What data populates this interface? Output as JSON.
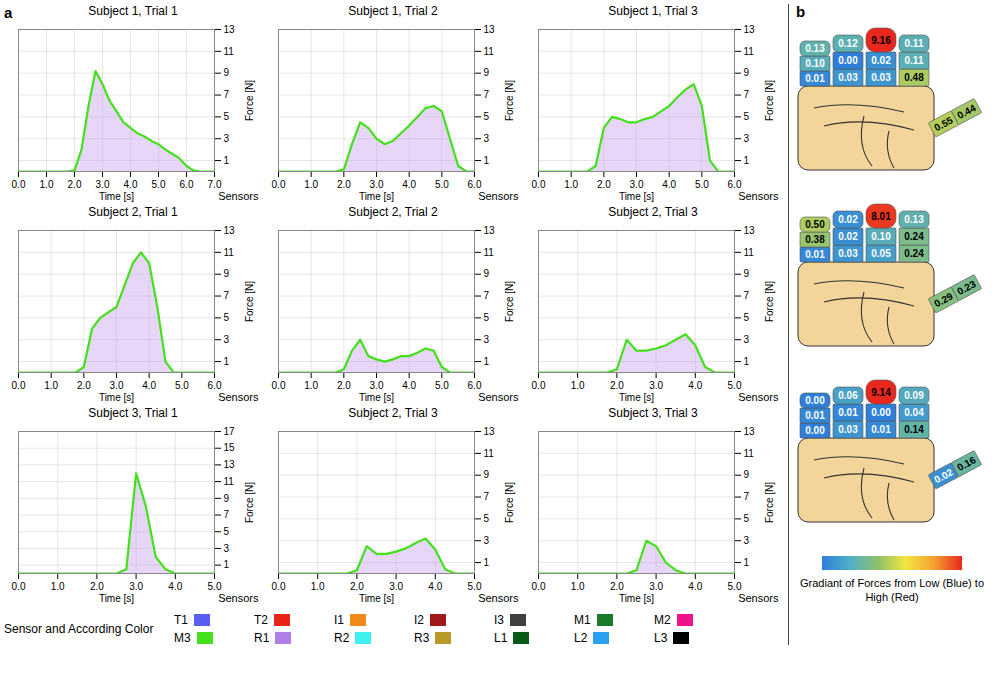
{
  "chart_data": [
    {
      "type": "line",
      "title": "Subject 1, Trial 1",
      "x_label": "Time [s]",
      "y_label": "Force [N]",
      "depth_label": "Sensors",
      "x": [
        0,
        0.25,
        0.5,
        0.75,
        1,
        1.25,
        1.5,
        1.75,
        2,
        2.25,
        2.5,
        2.75,
        3,
        3.25,
        3.5,
        3.75,
        4,
        4.25,
        4.5,
        4.75,
        5,
        5.25,
        5.5,
        5.75,
        6,
        6.25,
        6.5,
        6.75,
        7
      ],
      "series": [
        {
          "name": "M3",
          "color": "#44e01c",
          "values": [
            0,
            0,
            0,
            0,
            0,
            0,
            0,
            0,
            0.1,
            2,
            6,
            9.2,
            8,
            6.5,
            5.5,
            4.5,
            4,
            3.5,
            3.2,
            2.8,
            2.5,
            2,
            1.6,
            1.2,
            0.5,
            0.1,
            0,
            0,
            0
          ]
        }
      ],
      "xlim": [
        0,
        7
      ],
      "xticks": [
        0,
        1,
        2,
        3,
        4,
        5,
        6,
        7
      ],
      "ylim": [
        0,
        13
      ],
      "yticks": [
        1,
        3,
        5,
        7,
        9,
        11,
        13
      ],
      "grid": true
    },
    {
      "type": "line",
      "title": "Subject 1, Trial 2",
      "x_label": "Time [s]",
      "y_label": "Force [N]",
      "depth_label": "Sensors",
      "x": [
        0,
        0.25,
        0.5,
        0.75,
        1,
        1.25,
        1.5,
        1.75,
        2,
        2.25,
        2.5,
        2.75,
        3,
        3.25,
        3.5,
        3.75,
        4,
        4.25,
        4.5,
        4.75,
        5,
        5.25,
        5.5,
        5.75,
        6
      ],
      "series": [
        {
          "name": "M3",
          "color": "#44e01c",
          "values": [
            0,
            0,
            0,
            0,
            0,
            0,
            0,
            0,
            0.2,
            2.5,
            4.5,
            4,
            3,
            2.5,
            2.8,
            3.5,
            4.2,
            5,
            5.8,
            6,
            5.5,
            3,
            0.5,
            0,
            0
          ]
        }
      ],
      "xlim": [
        0,
        6
      ],
      "xticks": [
        0,
        1,
        2,
        3,
        4,
        5,
        6
      ],
      "ylim": [
        0,
        13
      ],
      "yticks": [
        1,
        3,
        5,
        7,
        9,
        11,
        13
      ],
      "grid": true
    },
    {
      "type": "line",
      "title": "Subject 1, Trial 3",
      "x_label": "Time [s]",
      "y_label": "Force [N]",
      "depth_label": "Sensors",
      "x": [
        0,
        0.25,
        0.5,
        0.75,
        1,
        1.25,
        1.5,
        1.75,
        2,
        2.25,
        2.5,
        2.75,
        3,
        3.25,
        3.5,
        3.75,
        4,
        4.25,
        4.5,
        4.75,
        5,
        5.25,
        5.5,
        5.75,
        6
      ],
      "series": [
        {
          "name": "M3",
          "color": "#44e01c",
          "values": [
            0,
            0,
            0,
            0,
            0,
            0,
            0,
            0.5,
            4,
            5,
            4.8,
            4.5,
            4.5,
            4.8,
            5,
            5.5,
            6,
            6.8,
            7.5,
            8,
            6,
            1,
            0,
            0,
            0
          ]
        }
      ],
      "xlim": [
        0,
        6
      ],
      "xticks": [
        0,
        1,
        2,
        3,
        4,
        5,
        6
      ],
      "ylim": [
        0,
        13
      ],
      "yticks": [
        1,
        3,
        5,
        7,
        9,
        11,
        13
      ],
      "grid": true
    },
    {
      "type": "line",
      "title": "Subject 2, Trial 1",
      "x_label": "Time [s]",
      "y_label": "Force [N]",
      "depth_label": "Sensors",
      "x": [
        0,
        0.25,
        0.5,
        0.75,
        1,
        1.25,
        1.5,
        1.75,
        2,
        2.25,
        2.5,
        2.75,
        3,
        3.25,
        3.5,
        3.75,
        4,
        4.25,
        4.5,
        4.75,
        5,
        5.25,
        5.5,
        5.75,
        6
      ],
      "series": [
        {
          "name": "M3",
          "color": "#44e01c",
          "values": [
            0,
            0,
            0,
            0,
            0,
            0,
            0,
            0,
            0.5,
            4,
            5,
            5.5,
            6,
            8,
            10,
            11,
            10,
            6,
            1,
            0,
            0,
            0,
            0,
            0,
            0
          ]
        }
      ],
      "xlim": [
        0,
        6
      ],
      "xticks": [
        0,
        1,
        2,
        3,
        4,
        5,
        6
      ],
      "ylim": [
        0,
        13
      ],
      "yticks": [
        1,
        3,
        5,
        7,
        9,
        11,
        13
      ],
      "grid": true
    },
    {
      "type": "line",
      "title": "Subject 2, Trial 2",
      "x_label": "Time [s]",
      "y_label": "Force [N]",
      "depth_label": "Sensors",
      "x": [
        0,
        0.25,
        0.5,
        0.75,
        1,
        1.25,
        1.5,
        1.75,
        2,
        2.25,
        2.5,
        2.75,
        3,
        3.25,
        3.5,
        3.75,
        4,
        4.25,
        4.5,
        4.75,
        5,
        5.25,
        5.5,
        5.75,
        6
      ],
      "series": [
        {
          "name": "M3",
          "color": "#44e01c",
          "values": [
            0,
            0,
            0,
            0,
            0,
            0,
            0,
            0,
            0.3,
            2,
            3,
            1.5,
            1.2,
            1,
            1.2,
            1.5,
            1.5,
            1.8,
            2.2,
            2,
            0.5,
            0,
            0,
            0,
            0
          ]
        }
      ],
      "xlim": [
        0,
        6
      ],
      "xticks": [
        0,
        1,
        2,
        3,
        4,
        5,
        6
      ],
      "ylim": [
        0,
        13
      ],
      "yticks": [
        1,
        3,
        5,
        7,
        9,
        11,
        13
      ],
      "grid": true
    },
    {
      "type": "line",
      "title": "Subject 2, Trial 3",
      "x_label": "Time [s]",
      "y_label": "Force [N]",
      "depth_label": "Sensors",
      "x": [
        0,
        0.25,
        0.5,
        0.75,
        1,
        1.25,
        1.5,
        1.75,
        2,
        2.25,
        2.5,
        2.75,
        3,
        3.25,
        3.5,
        3.75,
        4,
        4.25,
        4.5,
        4.75,
        5
      ],
      "series": [
        {
          "name": "M3",
          "color": "#44e01c",
          "values": [
            0,
            0,
            0,
            0,
            0,
            0,
            0,
            0,
            0.3,
            3,
            2,
            2,
            2.2,
            2.5,
            3,
            3.5,
            2.5,
            0.5,
            0,
            0,
            0
          ]
        }
      ],
      "xlim": [
        0,
        5
      ],
      "xticks": [
        0,
        1,
        2,
        3,
        4,
        5
      ],
      "ylim": [
        0,
        13
      ],
      "yticks": [
        1,
        3,
        5,
        7,
        9,
        11,
        13
      ],
      "grid": true
    },
    {
      "type": "line",
      "title": "Subject 3, Trial 1",
      "x_label": "Time [s]",
      "y_label": "Force [N]",
      "depth_label": "Sensors",
      "x": [
        0,
        0.25,
        0.5,
        0.75,
        1,
        1.25,
        1.5,
        1.75,
        2,
        2.25,
        2.5,
        2.75,
        3,
        3.25,
        3.5,
        3.75,
        4,
        4.25,
        4.5,
        4.75,
        5
      ],
      "series": [
        {
          "name": "M3",
          "color": "#44e01c",
          "values": [
            0,
            0,
            0,
            0,
            0,
            0,
            0,
            0,
            0,
            0,
            0,
            0.5,
            12,
            8,
            2,
            0.5,
            0,
            0,
            0,
            0,
            0
          ]
        }
      ],
      "xlim": [
        0,
        5
      ],
      "xticks": [
        0,
        1,
        2,
        3,
        4,
        5
      ],
      "ylim": [
        0,
        17
      ],
      "yticks": [
        1,
        3,
        5,
        7,
        9,
        11,
        13,
        15,
        17
      ],
      "grid": true
    },
    {
      "type": "line",
      "title": "Subject 2, Trial 3",
      "x_label": "Time [s]",
      "y_label": "Force [N]",
      "depth_label": "Sensors",
      "x": [
        0,
        0.25,
        0.5,
        0.75,
        1,
        1.25,
        1.5,
        1.75,
        2,
        2.25,
        2.5,
        2.75,
        3,
        3.25,
        3.5,
        3.75,
        4,
        4.25,
        4.5,
        4.75,
        5
      ],
      "series": [
        {
          "name": "M3",
          "color": "#44e01c",
          "values": [
            0,
            0,
            0,
            0,
            0,
            0,
            0,
            0,
            0.3,
            2.5,
            1.8,
            1.8,
            2,
            2.3,
            2.8,
            3.2,
            2.2,
            0.4,
            0,
            0,
            0
          ]
        }
      ],
      "xlim": [
        0,
        5
      ],
      "xticks": [
        0,
        1,
        2,
        3,
        4,
        5
      ],
      "ylim": [
        0,
        13
      ],
      "yticks": [
        1,
        3,
        5,
        7,
        9,
        11,
        13
      ],
      "grid": true
    },
    {
      "type": "line",
      "title": "Subject 3, Trial 3",
      "x_label": "Time [s]",
      "y_label": "Force [N]",
      "depth_label": "Sensors",
      "x": [
        0,
        0.25,
        0.5,
        0.75,
        1,
        1.25,
        1.5,
        1.75,
        2,
        2.25,
        2.5,
        2.75,
        3,
        3.25,
        3.5,
        3.75,
        4,
        4.25,
        4.5,
        4.75,
        5
      ],
      "series": [
        {
          "name": "M3",
          "color": "#44e01c",
          "values": [
            0,
            0,
            0,
            0,
            0,
            0,
            0,
            0,
            0,
            0,
            0.3,
            3,
            2.5,
            1,
            0.3,
            0,
            0,
            0,
            0,
            0,
            0
          ]
        }
      ],
      "xlim": [
        0,
        5
      ],
      "xticks": [
        0,
        1,
        2,
        3,
        4,
        5
      ],
      "ylim": [
        0,
        13
      ],
      "yticks": [
        1,
        3,
        5,
        7,
        9,
        11,
        13
      ],
      "grid": true
    }
  ],
  "panel_labels": [
    "a",
    "b"
  ],
  "sensor_legend": {
    "title": "Sensor and According Color",
    "items": [
      {
        "name": "T1",
        "color": "#5a5ef0"
      },
      {
        "name": "T2",
        "color": "#e8231a"
      },
      {
        "name": "I1",
        "color": "#f08a1c"
      },
      {
        "name": "I2",
        "color": "#a01a1a"
      },
      {
        "name": "I3",
        "color": "#404040"
      },
      {
        "name": "M1",
        "color": "#1a7a2a"
      },
      {
        "name": "M2",
        "color": "#f0148c"
      },
      {
        "name": "M3",
        "color": "#44e01c"
      },
      {
        "name": "R1",
        "color": "#b07ee8"
      },
      {
        "name": "R2",
        "color": "#3ef0f0"
      },
      {
        "name": "R3",
        "color": "#b89a28"
      },
      {
        "name": "L1",
        "color": "#0a5a1a"
      },
      {
        "name": "L2",
        "color": "#2aa0f0"
      },
      {
        "name": "L3",
        "color": "#000000"
      }
    ]
  },
  "hands": [
    {
      "fingers": [
        [
          0.13,
          0.1,
          0.01
        ],
        [
          0.12,
          0.0,
          0.03
        ],
        [
          9.16,
          0.02,
          0.03
        ],
        [
          0.11,
          0.11,
          0.48
        ]
      ],
      "thumb": [
        0.55,
        0.44
      ]
    },
    {
      "fingers": [
        [
          0.5,
          0.38,
          0.01
        ],
        [
          0.02,
          0.02,
          0.03
        ],
        [
          8.01,
          0.1,
          0.05
        ],
        [
          0.13,
          0.24,
          0.24
        ]
      ],
      "thumb": [
        0.29,
        0.23
      ]
    },
    {
      "fingers": [
        [
          0.0,
          0.01,
          0.0
        ],
        [
          0.06,
          0.01,
          0.03
        ],
        [
          9.14,
          0.0,
          0.01
        ],
        [
          0.09,
          0.04,
          0.14
        ]
      ],
      "thumb": [
        0.02,
        0.16
      ]
    }
  ],
  "hand_value_labels": [
    {
      "fingers": [
        [
          "0.13",
          "0.10",
          "0.01"
        ],
        [
          "0.12",
          "0.00",
          "0.03"
        ],
        [
          "9.16",
          "0.02",
          "0.03"
        ],
        [
          "0.11",
          "0.11",
          "0.48"
        ]
      ],
      "thumb": [
        "0.55",
        "0.44"
      ]
    },
    {
      "fingers": [
        [
          "0.50",
          "0.38",
          "0.01"
        ],
        [
          "0.02",
          "0.02",
          "0.03"
        ],
        [
          "8.01",
          "0.10",
          "0.05"
        ],
        [
          "0.13",
          "0.24",
          "0.24"
        ]
      ],
      "thumb": [
        "0.29",
        "0.23"
      ]
    },
    {
      "fingers": [
        [
          "0.00",
          "0.01",
          "0.00"
        ],
        [
          "0.06",
          "0.01",
          "0.03"
        ],
        [
          "9.14",
          "0.00",
          "0.01"
        ],
        [
          "0.09",
          "0.04",
          "0.14"
        ]
      ],
      "thumb": [
        "0.02",
        "0.16"
      ]
    }
  ],
  "color_gradient": {
    "label": "Gradiant of Forces from Low (Blue) to High (Red)"
  }
}
